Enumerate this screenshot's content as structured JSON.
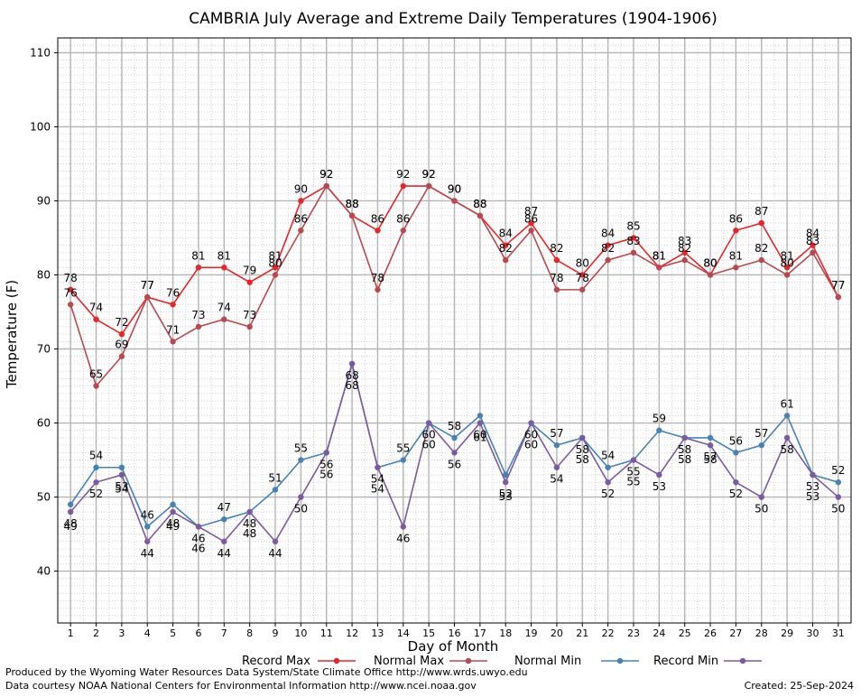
{
  "chart_data": {
    "type": "line",
    "title": "CAMBRIA July Average and Extreme Daily Temperatures (1904-1906)",
    "xlabel": "Day of Month",
    "ylabel": "Temperature (F)",
    "x": [
      1,
      2,
      3,
      4,
      5,
      6,
      7,
      8,
      9,
      10,
      11,
      12,
      13,
      14,
      15,
      16,
      17,
      18,
      19,
      20,
      21,
      22,
      23,
      24,
      25,
      26,
      27,
      28,
      29,
      30,
      31
    ],
    "xlim": [
      0.5,
      31.5
    ],
    "ylim": [
      33,
      112
    ],
    "yticks": [
      40,
      50,
      60,
      70,
      80,
      90,
      100,
      110
    ],
    "grid": true,
    "legend_position": "bottom",
    "series": [
      {
        "name": "Record Max",
        "color": "#e8252a",
        "values": [
          78,
          74,
          72,
          77,
          76,
          81,
          81,
          79,
          81,
          90,
          92,
          88,
          86,
          92,
          92,
          90,
          88,
          84,
          87,
          82,
          80,
          84,
          85,
          81,
          83,
          80,
          86,
          87,
          81,
          84,
          77
        ]
      },
      {
        "name": "Normal Max",
        "color": "#b84a4f",
        "values": [
          76,
          65,
          69,
          77,
          71,
          73,
          74,
          73,
          80,
          86,
          92,
          88,
          78,
          86,
          92,
          90,
          88,
          82,
          86,
          78,
          78,
          82,
          83,
          81,
          82,
          80,
          81,
          82,
          80,
          83,
          77
        ]
      },
      {
        "name": "Normal Min",
        "color": "#4682b4",
        "values": [
          49,
          54,
          54,
          46,
          49,
          46,
          47,
          48,
          51,
          55,
          56,
          68,
          54,
          55,
          60,
          58,
          61,
          53,
          60,
          57,
          58,
          54,
          55,
          59,
          58,
          58,
          56,
          57,
          61,
          53,
          52
        ]
      },
      {
        "name": "Record Min",
        "color": "#7b5a9e",
        "values": [
          48,
          52,
          53,
          44,
          48,
          46,
          44,
          48,
          44,
          50,
          56,
          68,
          54,
          46,
          60,
          56,
          60,
          52,
          60,
          54,
          58,
          52,
          55,
          53,
          58,
          57,
          52,
          50,
          58,
          53,
          50
        ]
      }
    ]
  },
  "footer": {
    "produced_by": "Produced by the Wyoming Water Resources Data System/State Climate Office http://www.wrds.uwyo.edu",
    "data_courtesy": "Data courtesy NOAA National Centers for Environmental Information http://www.ncei.noaa.gov",
    "created": "Created:  25-Sep-2024"
  }
}
